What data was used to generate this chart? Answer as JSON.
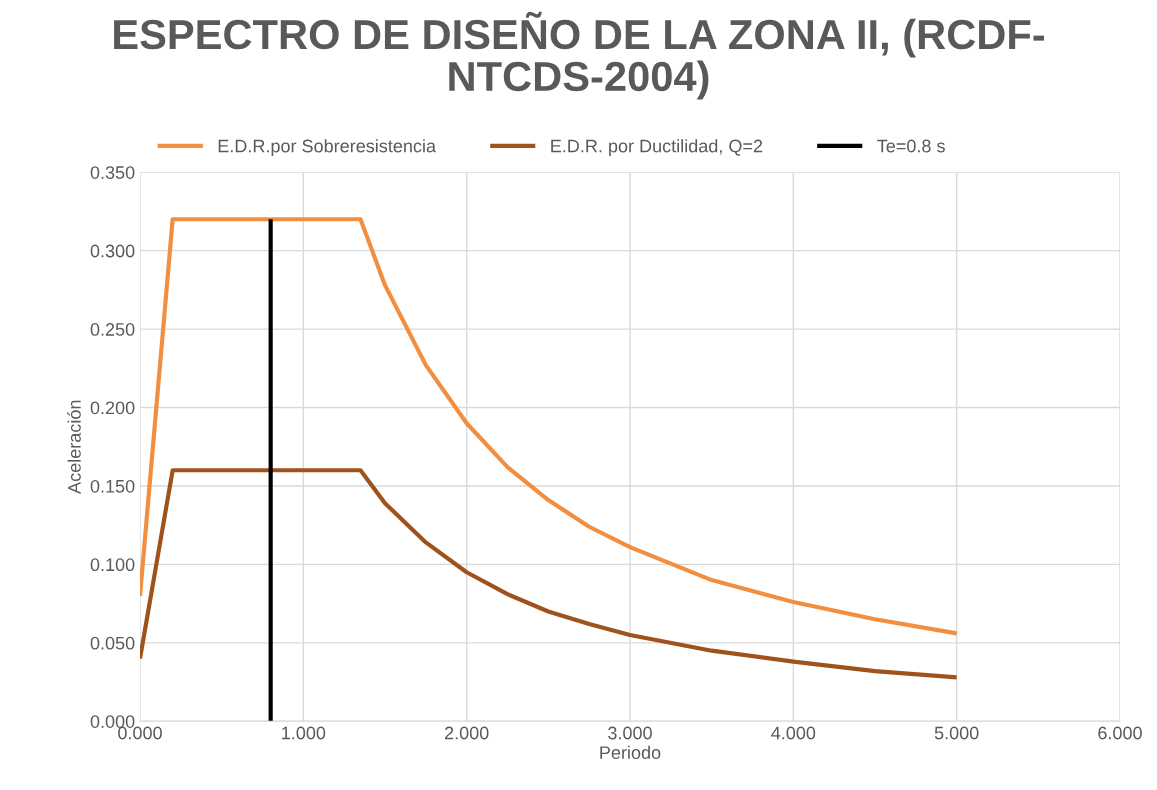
{
  "chart_data": {
    "type": "line",
    "title": "ESPECTRO DE DISEÑO DE LA ZONA II, (RCDF-\nNTCDS-2004)",
    "xlabel": "Periodo",
    "ylabel": "Aceleración",
    "series": [
      {
        "name": "E.D.R.por Sobreresistencia",
        "color": "#f28e3f",
        "x": [
          0,
          0.2,
          1.35,
          1.5,
          1.75,
          2,
          2.25,
          2.5,
          2.75,
          3,
          3.5,
          4,
          4.5,
          5
        ],
        "values": [
          0.08,
          0.32,
          0.32,
          0.278,
          0.227,
          0.19,
          0.162,
          0.141,
          0.124,
          0.111,
          0.09,
          0.076,
          0.065,
          0.056
        ]
      },
      {
        "name": "E.D.R. por Ductilidad, Q=2",
        "color": "#a0521d",
        "x": [
          0,
          0.2,
          1.35,
          1.5,
          1.75,
          2,
          2.25,
          2.5,
          2.75,
          3,
          3.5,
          4,
          4.5,
          5
        ],
        "values": [
          0.04,
          0.16,
          0.16,
          0.139,
          0.114,
          0.095,
          0.081,
          0.07,
          0.062,
          0.055,
          0.045,
          0.038,
          0.032,
          0.028
        ]
      },
      {
        "name": "Te=0.8 s",
        "color": "#000000",
        "x": [
          0.8,
          0.8
        ],
        "values": [
          0,
          0.32
        ]
      }
    ],
    "xlim": [
      0,
      6
    ],
    "xticks": [
      {
        "value": 0,
        "label": "0.000"
      },
      {
        "value": 1,
        "label": "1.000"
      },
      {
        "value": 2,
        "label": "2.000"
      },
      {
        "value": 3,
        "label": "3.000"
      },
      {
        "value": 4,
        "label": "4.000"
      },
      {
        "value": 5,
        "label": "5.000"
      },
      {
        "value": 6,
        "label": "6.000"
      }
    ],
    "ylim": [
      0,
      0.35
    ],
    "yticks": [
      {
        "value": 0,
        "label": "0.000"
      },
      {
        "value": 0.05,
        "label": "0.050"
      },
      {
        "value": 0.1,
        "label": "0.100"
      },
      {
        "value": 0.15,
        "label": "0.150"
      },
      {
        "value": 0.2,
        "label": "0.200"
      },
      {
        "value": 0.25,
        "label": "0.250"
      },
      {
        "value": 0.3,
        "label": "0.300"
      },
      {
        "value": 0.35,
        "label": "0.350"
      }
    ],
    "grid": true,
    "legend": "top",
    "marker": "none",
    "line_style": "solid"
  }
}
